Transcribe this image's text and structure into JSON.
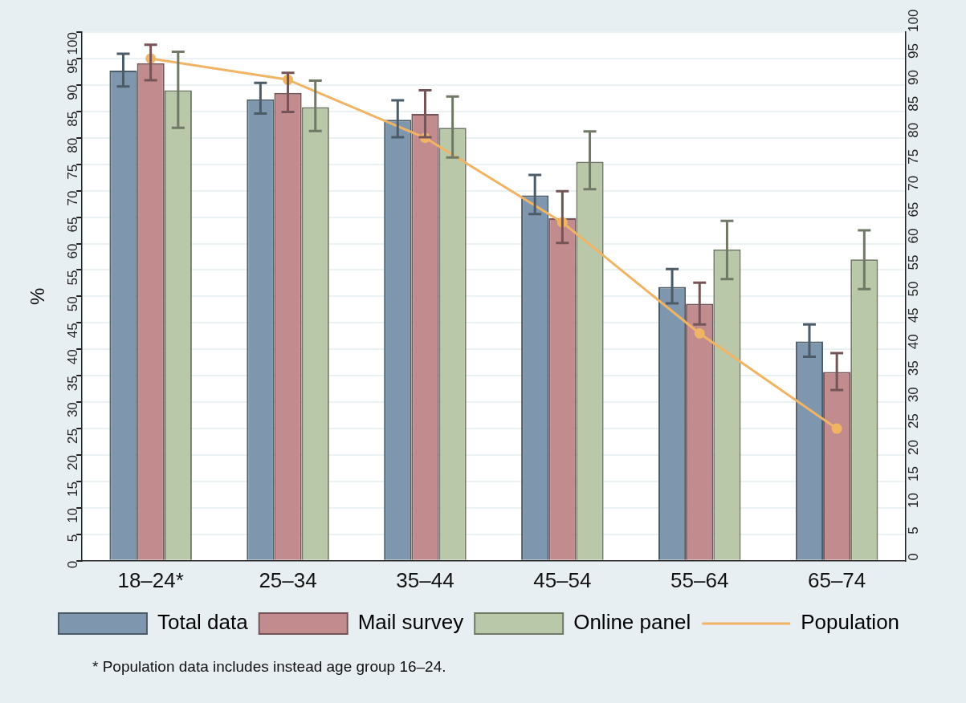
{
  "chart_data": {
    "type": "bar",
    "ylabel": "%",
    "categories": [
      "18–24*",
      "25–34",
      "35–44",
      "45–54",
      "55–64",
      "65–74"
    ],
    "series": [
      {
        "name": "Total data",
        "color": "#7f97ae",
        "values": [
          92.7,
          87.3,
          83.4,
          69.1,
          51.8,
          41.5
        ],
        "errors": [
          [
            89.7,
            95.9
          ],
          [
            84.6,
            90.4
          ],
          [
            80.1,
            87.1
          ],
          [
            65.6,
            73.0
          ],
          [
            48.7,
            55.2
          ],
          [
            38.6,
            44.7
          ]
        ]
      },
      {
        "name": "Mail survey",
        "color": "#c28c8f",
        "values": [
          94.1,
          88.5,
          84.5,
          64.8,
          48.6,
          35.7
        ],
        "errors": [
          [
            90.9,
            97.6
          ],
          [
            84.9,
            92.3
          ],
          [
            80.1,
            89.0
          ],
          [
            60.1,
            69.9
          ],
          [
            44.7,
            52.6
          ],
          [
            32.3,
            39.3
          ]
        ]
      },
      {
        "name": "Online panel",
        "color": "#bac8aa",
        "values": [
          89.0,
          85.8,
          81.9,
          75.5,
          58.9,
          57.0
        ],
        "errors": [
          [
            81.9,
            96.3
          ],
          [
            81.3,
            90.8
          ],
          [
            76.3,
            87.8
          ],
          [
            70.3,
            81.2
          ],
          [
            53.3,
            64.3
          ],
          [
            51.4,
            62.5
          ]
        ]
      },
      {
        "name": "Population",
        "type": "line",
        "color": "#f0b464",
        "values": [
          95,
          91,
          80,
          64,
          43,
          25
        ]
      }
    ],
    "ylim": [
      0,
      100
    ],
    "yticks": [
      0,
      5,
      10,
      15,
      20,
      25,
      30,
      35,
      40,
      45,
      50,
      55,
      60,
      65,
      70,
      75,
      80,
      85,
      90,
      95,
      100
    ],
    "y2lim": [
      0,
      100
    ],
    "y2ticks": [
      0,
      5,
      10,
      15,
      20,
      25,
      30,
      35,
      40,
      45,
      50,
      55,
      60,
      65,
      70,
      75,
      80,
      85,
      90,
      95,
      100
    ],
    "grid": "y",
    "legend": "bottom",
    "marker": "circle",
    "annotations": [
      "* Population data includes instead age group 16–24."
    ]
  }
}
